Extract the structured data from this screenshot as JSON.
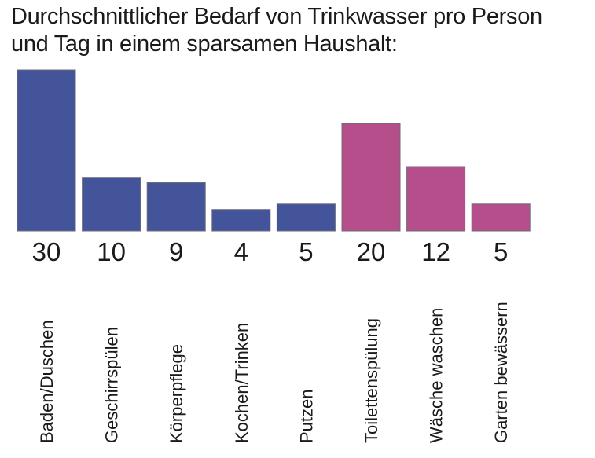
{
  "chart_data": {
    "type": "bar",
    "title": "Durchschnittlicher Bedarf von Trinkwasser pro Person und Tag in einem sparsamen Haushalt:",
    "title_lines": [
      "Durchschnittlicher Bedarf von Trinkwasser pro Person",
      "und Tag in einem sparsamen Haushalt:"
    ],
    "xlabel": "",
    "ylabel": "",
    "ylim": [
      0,
      30
    ],
    "grid": false,
    "categories": [
      "Baden/Duschen",
      "Geschirrspülen",
      "Körperpflege",
      "Kochen/Trinken",
      "Putzen",
      "Toilettenspülung",
      "Wäsche waschen",
      "Garten bewässern"
    ],
    "values": [
      30,
      10,
      9,
      4,
      5,
      20,
      12,
      5
    ],
    "value_labels": [
      "30",
      "10",
      "9",
      "4",
      "5",
      "20",
      "12",
      "5"
    ],
    "bar_colors": [
      "#44549a",
      "#44549a",
      "#44549a",
      "#44549a",
      "#44549a",
      "#b74e8c",
      "#b74e8c",
      "#b74e8c"
    ],
    "bar_edge_color": "#6b6b7a"
  }
}
